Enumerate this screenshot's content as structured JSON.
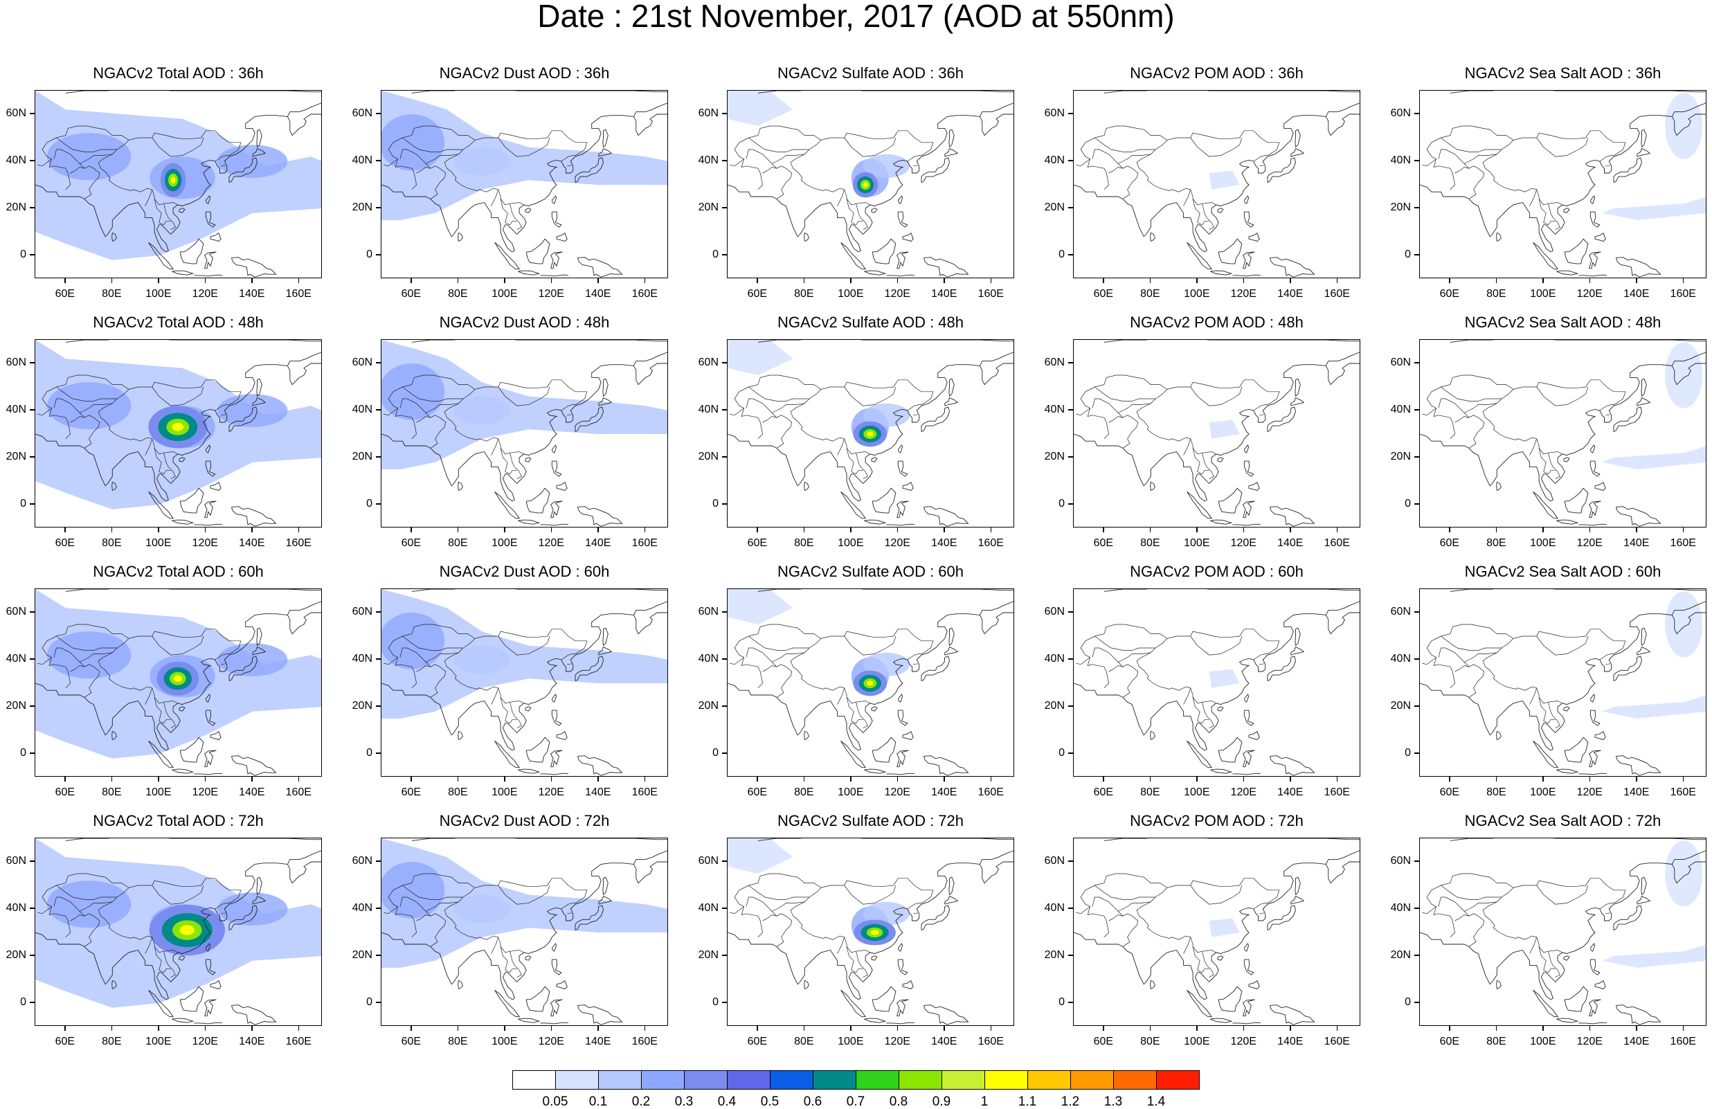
{
  "title": "Date : 21st November, 2017 (AOD at 550nm)",
  "grid": {
    "columns": [
      "total",
      "dust",
      "sulfate",
      "pom",
      "seasalt"
    ],
    "rows": [
      "36h",
      "48h",
      "60h",
      "72h"
    ],
    "panel_titles": [
      [
        "NGACv2 Total AOD : 36h",
        "NGACv2 Dust AOD : 36h",
        "NGACv2 Sulfate AOD : 36h",
        "NGACv2 POM AOD : 36h",
        "NGACv2 Sea Salt AOD : 36h"
      ],
      [
        "NGACv2 Total AOD : 48h",
        "NGACv2 Dust AOD : 48h",
        "NGACv2 Sulfate AOD : 48h",
        "NGACv2 POM AOD : 48h",
        "NGACv2 Sea Salt AOD : 48h"
      ],
      [
        "NGACv2 Total AOD : 60h",
        "NGACv2 Dust AOD : 60h",
        "NGACv2 Sulfate AOD : 60h",
        "NGACv2 POM AOD : 60h",
        "NGACv2 Sea Salt AOD : 60h"
      ],
      [
        "NGACv2 Total AOD : 72h",
        "NGACv2 Dust AOD : 72h",
        "NGACv2 Sulfate AOD : 72h",
        "NGACv2 POM AOD : 72h",
        "NGACv2 Sea Salt  AOD : 72h"
      ]
    ]
  },
  "map": {
    "lon_range": [
      47,
      170
    ],
    "lat_range": [
      -10,
      70
    ],
    "lon_ticks": [
      "60E",
      "80E",
      "100E",
      "120E",
      "140E",
      "160E"
    ],
    "lon_tick_values": [
      60,
      80,
      100,
      120,
      140,
      160
    ],
    "lat_ticks": [
      "60N",
      "40N",
      "20N",
      "0"
    ],
    "lat_tick_values": [
      60,
      40,
      20,
      0
    ]
  },
  "colorbar": {
    "labels": [
      "0.05",
      "0.1",
      "0.2",
      "0.3",
      "0.4",
      "0.5",
      "0.6",
      "0.7",
      "0.8",
      "0.9",
      "1",
      "1.1",
      "1.2",
      "1.3",
      "1.4"
    ],
    "colors": [
      "#ffffff",
      "#d6e2ff",
      "#b5c8ff",
      "#8fa8ff",
      "#7a8cf0",
      "#5f68e8",
      "#0a5ee8",
      "#008a8a",
      "#2fd41a",
      "#8ae600",
      "#c8f032",
      "#ffff00",
      "#ffc800",
      "#ff9a00",
      "#ff6a00",
      "#ff1e00"
    ]
  }
}
